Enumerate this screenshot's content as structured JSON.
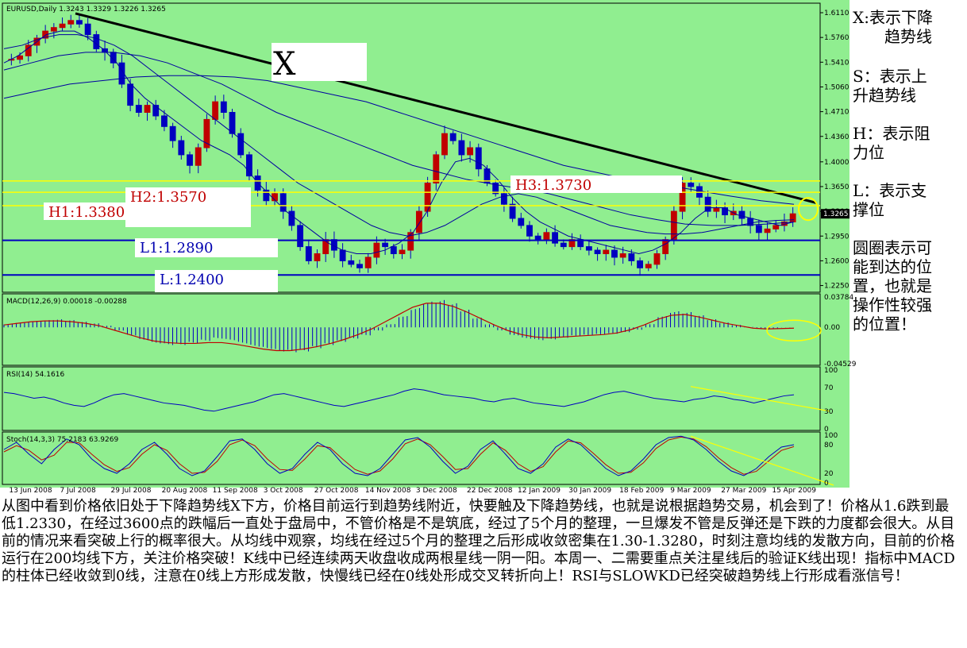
{
  "side_notes": {
    "x": "X:表示下降\n　　趋势线",
    "s": "S：表示上\n升趋势线",
    "h": "H：表示阻\n力位",
    "l": "L：表示支\n撑位",
    "circle": "圆圈表示可\n能到达的位\n置，也就是\n操作性较强\n的位置！"
  },
  "note": "从图中看到价格依旧处于下降趋势线X下方，价格目前运行到趋势线附近，快要触及下降趋势线，也就是说根据趋势交易，机会到了！价格从1.6跌到最低1.2330，在经过3600点的跌幅后一直处于盘局中，不管价格是不是筑底，经过了5个月的整理，一旦爆发不管是反弹还是下跌的力度都会很大。从目前的情况来看突破上行的概率很大。从均线中观察，均线在经过5个月的整理之后形成收敛密集在1.30-1.3280，时刻注意均线的发散方向，目前的价格运行在200均线下方，关注价格突破！K线中已经连续两天收盘收成两根星线一阴一阳。本周一、二需要重点关注星线后的验证K线出现！指标中MACD的柱体已经收敛到0线，注意在0线上方形成发散，快慢线已经在0线处形成交叉转折向上！RSI与SLOWKD已经突破趋势线上行形成看涨信号！",
  "chart_data": {
    "type": "candlestick",
    "symbol_label": "EURUSD,Daily  1.3243 1.3329 1.3226 1.3265",
    "last_price_label": "1.3265",
    "price_ylim": [
      1.22,
      1.62
    ],
    "price_ticks": [
      "1.6110",
      "1.5760",
      "1.5410",
      "1.5060",
      "1.4710",
      "1.4360",
      "1.4000",
      "1.3650",
      "1.3300",
      "1.2950",
      "1.2600",
      "1.2250"
    ],
    "x_ticks": [
      "13 Jun 2008",
      "7 Jul 2008",
      "29 Jul 2008",
      "20 Aug 2008",
      "11 Sep 2008",
      "3 Oct 2008",
      "27 Oct 2008",
      "14 Nov 2008",
      "3 Dec 2008",
      "22 Dec 2008",
      "12 Jan 2009",
      "30 Jan 2009",
      "18 Feb 2009",
      "9 Mar 2009",
      "27 Mar 2009",
      "15 Apr 2009"
    ],
    "trendline_label": "X",
    "levels": [
      {
        "name": "H1",
        "label": "H1:1.3380",
        "value": 1.338,
        "color": "#ffff00",
        "text_color": "#c00000"
      },
      {
        "name": "H2",
        "label": "H2:1.3570",
        "value": 1.357,
        "color": "#ffff00",
        "text_color": "#c00000"
      },
      {
        "name": "H3",
        "label": "H3:1.3730",
        "value": 1.373,
        "color": "#ffff00",
        "text_color": "#c00000"
      },
      {
        "name": "L1",
        "label": "L1:1.2890",
        "value": 1.289,
        "color": "#0000c0",
        "text_color": "#0000b0"
      },
      {
        "name": "L2",
        "label": "L:1.2400",
        "value": 1.24,
        "color": "#0000c0",
        "text_color": "#0000b0"
      }
    ],
    "close_path": [
      1.545,
      1.55,
      1.565,
      1.575,
      1.585,
      1.59,
      1.595,
      1.6,
      1.595,
      1.58,
      1.56,
      1.555,
      1.54,
      1.51,
      1.48,
      1.47,
      1.48,
      1.465,
      1.45,
      1.43,
      1.41,
      1.395,
      1.42,
      1.46,
      1.485,
      1.47,
      1.44,
      1.41,
      1.38,
      1.36,
      1.345,
      1.355,
      1.33,
      1.31,
      1.28,
      1.26,
      1.27,
      1.29,
      1.275,
      1.26,
      1.255,
      1.25,
      1.265,
      1.285,
      1.28,
      1.27,
      1.275,
      1.3,
      1.33,
      1.37,
      1.41,
      1.44,
      1.43,
      1.41,
      1.42,
      1.39,
      1.37,
      1.355,
      1.34,
      1.32,
      1.31,
      1.295,
      1.29,
      1.3,
      1.285,
      1.28,
      1.29,
      1.28,
      1.275,
      1.27,
      1.275,
      1.265,
      1.27,
      1.26,
      1.25,
      1.255,
      1.27,
      1.29,
      1.33,
      1.37,
      1.365,
      1.35,
      1.33,
      1.335,
      1.325,
      1.33,
      1.32,
      1.31,
      1.3,
      1.305,
      1.31,
      1.315,
      1.3265
    ],
    "moving_averages": [
      {
        "name": "ma_fast",
        "color": "#0000a0",
        "path": [
          1.54,
          1.55,
          1.565,
          1.58,
          1.585,
          1.585,
          1.575,
          1.56,
          1.54,
          1.51,
          1.49,
          1.475,
          1.46,
          1.445,
          1.43,
          1.42,
          1.41,
          1.395,
          1.37,
          1.35,
          1.33,
          1.315,
          1.3,
          1.285,
          1.275,
          1.27,
          1.27,
          1.275,
          1.285,
          1.3,
          1.33,
          1.37,
          1.4,
          1.405,
          1.395,
          1.375,
          1.35,
          1.33,
          1.315,
          1.305,
          1.295,
          1.29,
          1.285,
          1.28,
          1.275,
          1.27,
          1.275,
          1.285,
          1.3,
          1.32,
          1.335,
          1.335,
          1.325,
          1.32,
          1.315,
          1.31,
          1.315
        ]
      },
      {
        "name": "ma_mid",
        "color": "#0000a0",
        "path": [
          1.56,
          1.565,
          1.575,
          1.58,
          1.58,
          1.575,
          1.565,
          1.55,
          1.53,
          1.51,
          1.49,
          1.47,
          1.45,
          1.43,
          1.41,
          1.39,
          1.37,
          1.355,
          1.34,
          1.325,
          1.31,
          1.3,
          1.295,
          1.3,
          1.31,
          1.325,
          1.34,
          1.35,
          1.355,
          1.35,
          1.34,
          1.33,
          1.32,
          1.31,
          1.305,
          1.3,
          1.298,
          1.298,
          1.3,
          1.305,
          1.31,
          1.315,
          1.317,
          1.318
        ]
      },
      {
        "name": "ma_slow",
        "color": "#0000a0",
        "path": [
          1.53,
          1.54,
          1.55,
          1.555,
          1.555,
          1.55,
          1.54,
          1.525,
          1.51,
          1.49,
          1.47,
          1.455,
          1.44,
          1.425,
          1.41,
          1.395,
          1.385,
          1.375,
          1.368,
          1.362,
          1.355,
          1.345,
          1.335,
          1.325,
          1.318,
          1.312,
          1.31,
          1.31,
          1.312,
          1.315
        ]
      },
      {
        "name": "ma_200",
        "color": "#0000a0",
        "path": [
          1.49,
          1.5,
          1.51,
          1.515,
          1.52,
          1.522,
          1.522,
          1.52,
          1.515,
          1.505,
          1.495,
          1.485,
          1.47,
          1.455,
          1.44,
          1.425,
          1.41,
          1.395,
          1.385,
          1.375,
          1.368,
          1.36,
          1.352,
          1.345,
          1.34
        ]
      }
    ],
    "macd": {
      "label": "MACD(12,26,9) 0.00018 -0.00288",
      "ticks": [
        "0.03784",
        "0.00",
        "-0.04529"
      ],
      "ylim": [
        -0.0453,
        0.0378
      ],
      "hist": [
        0.004,
        0.006,
        0.008,
        0.009,
        0.01,
        0.009,
        0.007,
        0.005,
        0.002,
        -0.004,
        -0.01,
        -0.016,
        -0.02,
        -0.022,
        -0.022,
        -0.02,
        -0.017,
        -0.014,
        -0.016,
        -0.02,
        -0.024,
        -0.027,
        -0.03,
        -0.031,
        -0.03,
        -0.026,
        -0.022,
        -0.018,
        -0.014,
        -0.01,
        -0.004,
        0.004,
        0.014,
        0.024,
        0.032,
        0.034,
        0.03,
        0.022,
        0.012,
        0.004,
        -0.004,
        -0.01,
        -0.014,
        -0.016,
        -0.015,
        -0.013,
        -0.011,
        -0.01,
        -0.009,
        -0.008,
        -0.006,
        -0.003,
        0.004,
        0.014,
        0.02,
        0.019,
        0.015,
        0.01,
        0.006,
        0.003,
        0.0005,
        -0.002,
        -0.0015,
        0.0002
      ],
      "signal": [
        0.003,
        0.005,
        0.007,
        0.008,
        0.008,
        0.007,
        0.005,
        0.002,
        -0.003,
        -0.008,
        -0.013,
        -0.017,
        -0.019,
        -0.02,
        -0.02,
        -0.019,
        -0.019,
        -0.021,
        -0.024,
        -0.027,
        -0.029,
        -0.029,
        -0.027,
        -0.024,
        -0.02,
        -0.015,
        -0.009,
        -0.002,
        0.007,
        0.016,
        0.025,
        0.03,
        0.03,
        0.026,
        0.019,
        0.011,
        0.003,
        -0.004,
        -0.009,
        -0.012,
        -0.013,
        -0.012,
        -0.011,
        -0.01,
        -0.009,
        -0.007,
        -0.003,
        0.003,
        0.01,
        0.015,
        0.016,
        0.013,
        0.009,
        0.005,
        0.002,
        -0.001,
        -0.002,
        -0.0015,
        -0.001
      ]
    },
    "rsi": {
      "label": "RSI(14) 54.1616",
      "ticks": [
        "100",
        "70",
        "30",
        "0"
      ],
      "ylim": [
        0,
        100
      ],
      "values": [
        62,
        60,
        56,
        52,
        54,
        50,
        44,
        40,
        38,
        44,
        52,
        58,
        60,
        56,
        52,
        48,
        44,
        42,
        40,
        36,
        32,
        30,
        34,
        38,
        42,
        46,
        52,
        58,
        60,
        56,
        52,
        48,
        44,
        40,
        38,
        42,
        46,
        50,
        54,
        58,
        64,
        68,
        66,
        62,
        58,
        56,
        54,
        52,
        48,
        46,
        50,
        52,
        48,
        44,
        42,
        40,
        38,
        42,
        46,
        52,
        58,
        62,
        64,
        60,
        56,
        52,
        50,
        48,
        46,
        50,
        52,
        56,
        54,
        50,
        48,
        44,
        48,
        52,
        56,
        58
      ]
    },
    "stoch": {
      "label": "Stoch(14,3,3) 75.2183 63.9269",
      "ticks": [
        "100",
        "80",
        "20",
        "0"
      ],
      "ylim": [
        0,
        100
      ],
      "k": [
        70,
        85,
        60,
        40,
        70,
        92,
        80,
        50,
        30,
        20,
        40,
        70,
        85,
        60,
        30,
        15,
        25,
        55,
        88,
        92,
        70,
        40,
        20,
        30,
        60,
        85,
        70,
        40,
        20,
        15,
        30,
        60,
        90,
        95,
        75,
        45,
        20,
        35,
        70,
        88,
        60,
        30,
        20,
        40,
        75,
        92,
        80,
        55,
        30,
        15,
        25,
        50,
        80,
        95,
        98,
        90,
        70,
        45,
        25,
        15,
        30,
        55,
        75,
        80
      ],
      "d": [
        65,
        78,
        68,
        48,
        58,
        85,
        84,
        60,
        38,
        24,
        32,
        60,
        80,
        68,
        40,
        20,
        22,
        45,
        80,
        90,
        78,
        50,
        28,
        26,
        50,
        78,
        74,
        50,
        28,
        18,
        25,
        50,
        82,
        92,
        80,
        55,
        28,
        30,
        60,
        84,
        68,
        40,
        24,
        34,
        65,
        88,
        84,
        62,
        38,
        20,
        22,
        42,
        72,
        90,
        96,
        92,
        76,
        52,
        32,
        18,
        24,
        46,
        68,
        76
      ]
    }
  }
}
